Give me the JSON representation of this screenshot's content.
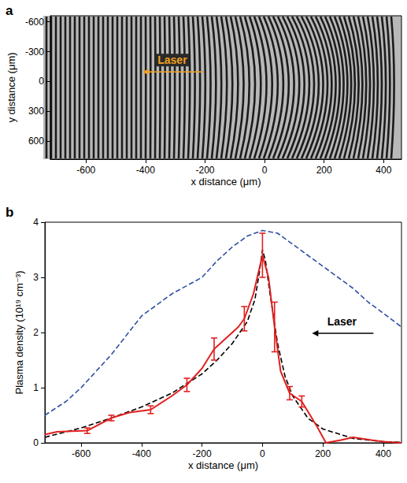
{
  "chart_data": [
    {
      "panel": "a",
      "type": "image",
      "xlabel": "x distance (μm)",
      "ylabel": "y distance (μm)",
      "xlim": [
        -720,
        460
      ],
      "xticks": [
        -600,
        -400,
        -200,
        0,
        200,
        400
      ],
      "ylim": [
        -660,
        780
      ],
      "yticks": [
        -600,
        -300,
        0,
        300,
        600
      ],
      "annotations": [
        {
          "text": "Laser",
          "x": -310,
          "y": -215,
          "color": "#f0a020"
        }
      ]
    },
    {
      "panel": "b",
      "type": "line",
      "xlabel": "x distance (μm)",
      "ylabel": "Plasma density (10¹⁹ cm⁻³)",
      "xlim": [
        -720,
        460
      ],
      "xticks": [
        -600,
        -400,
        -200,
        0,
        200,
        400
      ],
      "ylim": [
        0,
        4
      ],
      "yticks": [
        0,
        1,
        2,
        3,
        4
      ],
      "annotations": [
        {
          "text": "Laser",
          "x": 263,
          "y": 2.2,
          "color": "#000000"
        }
      ],
      "series": [
        {
          "color": "#2e4fa3",
          "line_style": "dashed",
          "x": [
            -720,
            -650,
            -600,
            -500,
            -400,
            -300,
            -200,
            -150,
            -100,
            -50,
            0,
            50,
            100,
            150,
            200,
            250,
            300,
            350,
            400,
            460
          ],
          "values": [
            0.5,
            0.75,
            1.0,
            1.6,
            2.3,
            2.7,
            3.0,
            3.3,
            3.55,
            3.75,
            3.85,
            3.8,
            3.6,
            3.4,
            3.2,
            3.0,
            2.8,
            2.55,
            2.35,
            2.1
          ]
        },
        {
          "color": "#000000",
          "line_style": "dashed",
          "x": [
            -720,
            -600,
            -500,
            -400,
            -300,
            -200,
            -150,
            -100,
            -50,
            -25,
            -10,
            0,
            10,
            25,
            50,
            75,
            100,
            150,
            200,
            300,
            400,
            460
          ],
          "values": [
            0.1,
            0.27,
            0.45,
            0.65,
            0.9,
            1.25,
            1.5,
            1.8,
            2.2,
            2.6,
            3.1,
            3.5,
            3.3,
            2.7,
            1.8,
            1.2,
            0.85,
            0.45,
            0.25,
            0.08,
            0.02,
            0.01
          ]
        },
        {
          "color": "#e02020",
          "line_style": "solid",
          "x": [
            -720,
            -680,
            -580,
            -500,
            -440,
            -370,
            -300,
            -250,
            -200,
            -160,
            -120,
            -80,
            -60,
            -30,
            0,
            20,
            40,
            60,
            90,
            130,
            180,
            210,
            260,
            300,
            360,
            400,
            460
          ],
          "values": [
            0.15,
            0.2,
            0.22,
            0.45,
            0.55,
            0.6,
            0.85,
            1.05,
            1.35,
            1.7,
            1.9,
            2.1,
            2.25,
            2.7,
            3.4,
            3.0,
            2.1,
            1.3,
            0.9,
            0.75,
            0.3,
            0.0,
            0.05,
            0.1,
            0.05,
            0.02,
            0.0
          ],
          "errors": [
            null,
            null,
            0.05,
            0.05,
            null,
            0.07,
            null,
            0.12,
            null,
            0.2,
            null,
            null,
            0.22,
            null,
            0.4,
            null,
            0.45,
            null,
            0.12,
            0.1,
            null,
            null,
            null,
            null,
            null,
            null,
            null
          ]
        }
      ]
    }
  ]
}
